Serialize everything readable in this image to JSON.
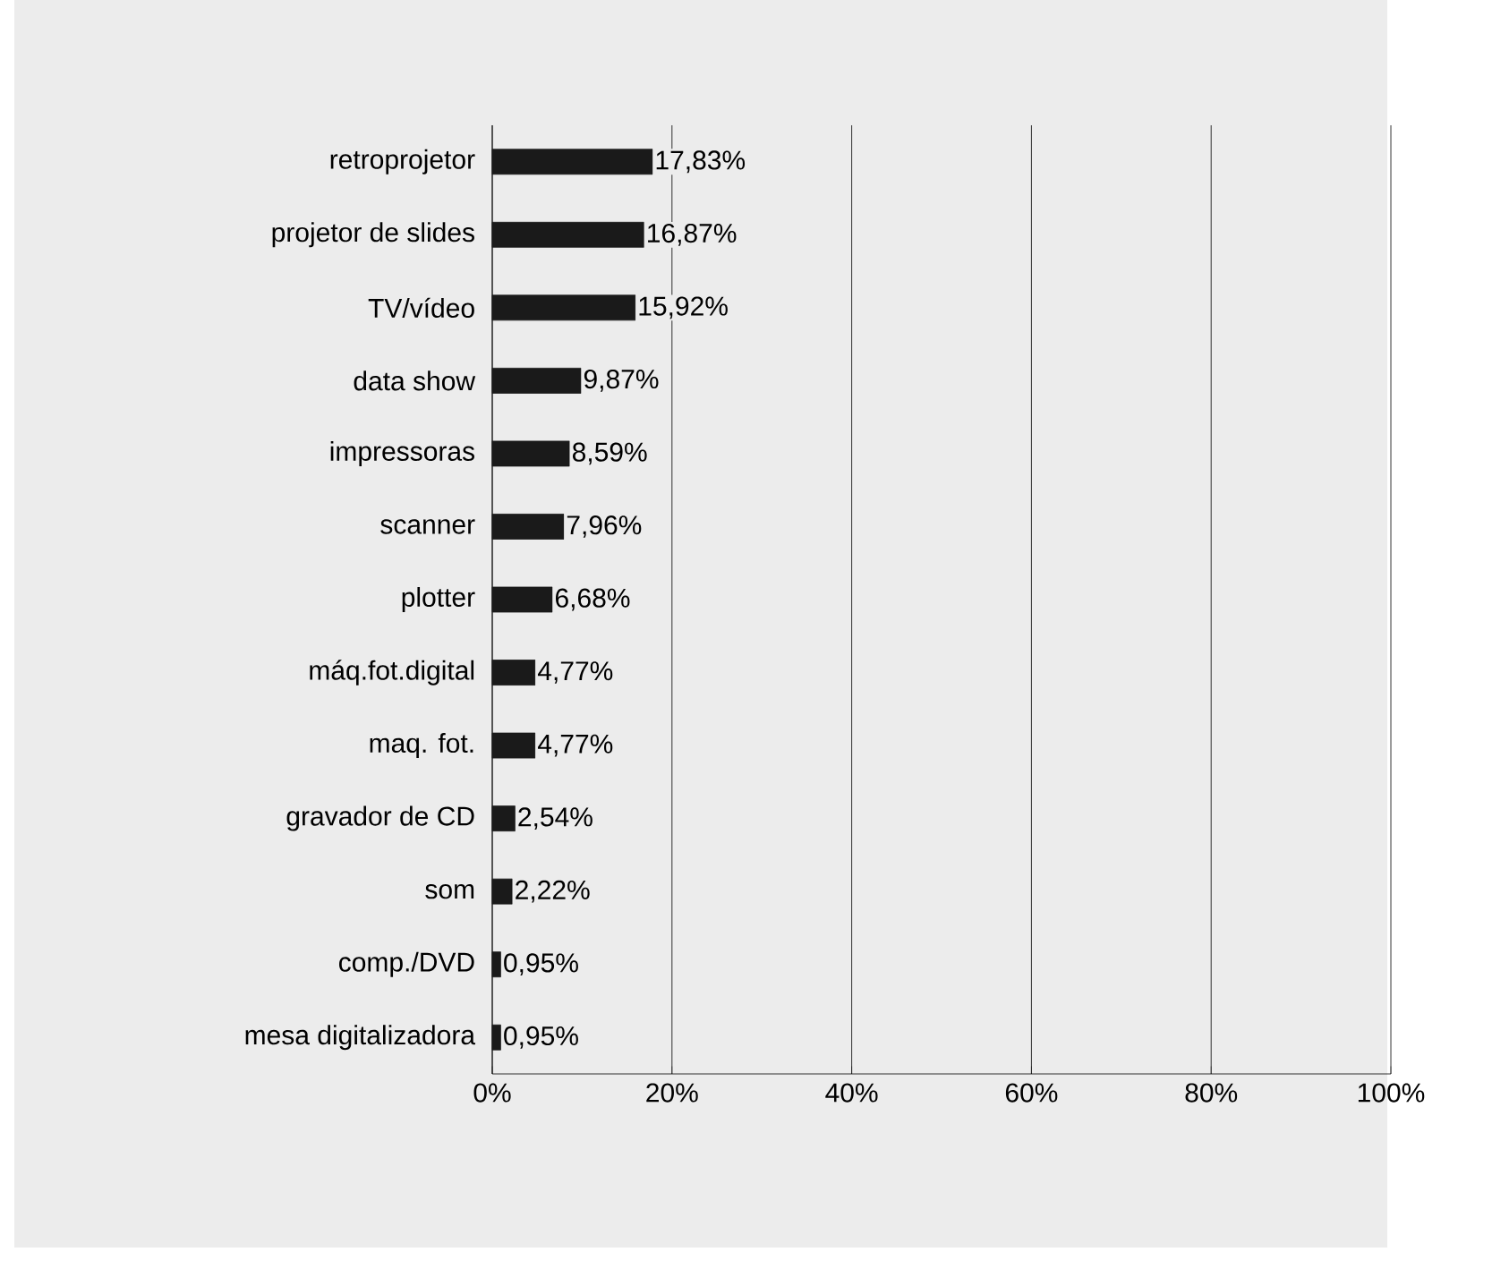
{
  "chart_data": {
    "type": "bar",
    "orientation": "horizontal",
    "categories": [
      "retroprojetor",
      "projetor de slides",
      "TV/vídeo",
      "data show",
      "impressoras",
      "scanner",
      "plotter",
      "máq.fot.digital",
      "maq. fot.",
      "gravador de CD",
      "som",
      "comp./DVD",
      "mesa digitalizadora"
    ],
    "values": [
      17.83,
      16.87,
      15.92,
      9.87,
      8.59,
      7.96,
      6.68,
      4.77,
      4.77,
      2.54,
      2.22,
      0.95,
      0.95
    ],
    "value_labels": [
      "17,83%",
      "16,87%",
      "15,92%",
      "9,87%",
      "8,59%",
      "7,96%",
      "6,68%",
      "4,77%",
      "4,77%",
      "2,54%",
      "2,22%",
      "0,95%",
      "0,95%"
    ],
    "color": "#1a1a1a",
    "xlim": [
      0,
      100
    ],
    "xticks": [
      {
        "value": 0,
        "label": "0%"
      },
      {
        "value": 20,
        "label": "20%"
      },
      {
        "value": 40,
        "label": "40%"
      },
      {
        "value": 60,
        "label": "60%"
      },
      {
        "value": 80,
        "label": "80%"
      },
      {
        "value": 100,
        "label": "100%"
      }
    ],
    "grid": "x"
  }
}
